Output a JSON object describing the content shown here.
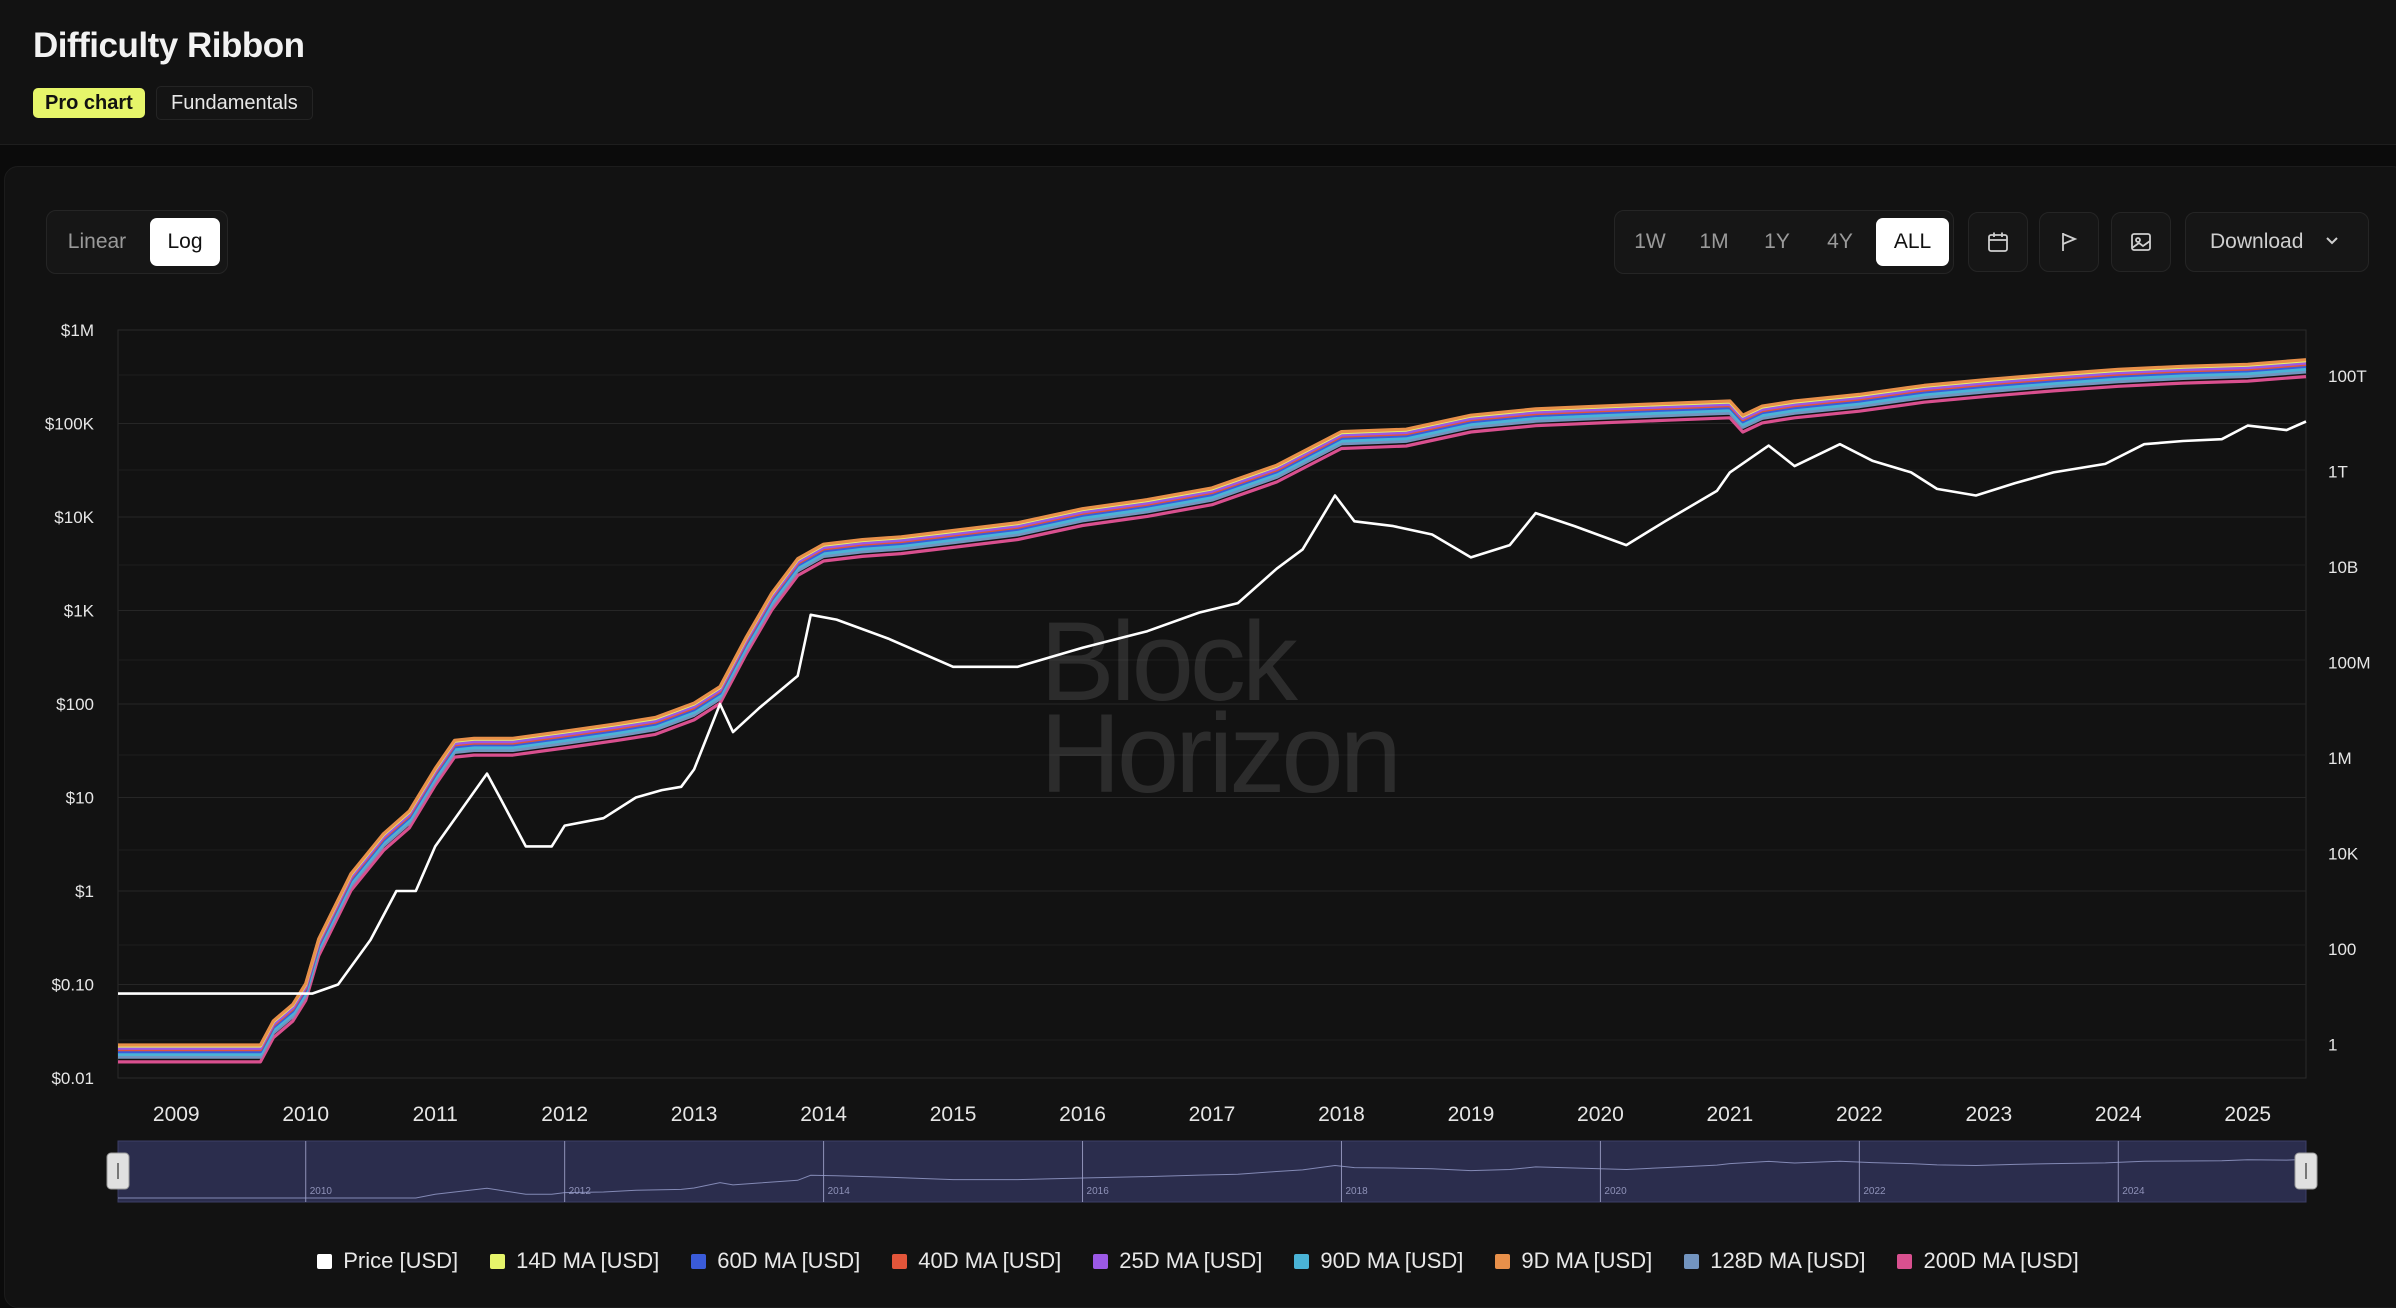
{
  "header": {
    "title": "Difficulty Ribbon",
    "tags": [
      "Pro chart",
      "Fundamentals"
    ]
  },
  "controls": {
    "scale": [
      "Linear",
      "Log"
    ],
    "scale_active": "Log",
    "ranges": [
      "1W",
      "1M",
      "1Y",
      "4Y",
      "ALL"
    ],
    "range_active": "ALL",
    "icons": [
      "calendar-icon",
      "flag-icon",
      "image-download-icon"
    ],
    "download_label": "Download"
  },
  "watermark": [
    "Block",
    "Horizon"
  ],
  "colors": {
    "background": "#121212",
    "price": "#ffffff",
    "accent": "#e6f56a",
    "navigator": "#2b2d4d"
  },
  "chart_data": {
    "type": "line",
    "ylabel_left_ticks": [
      "$1M",
      "$100K",
      "$10K",
      "$1K",
      "$100",
      "$10",
      "$1",
      "$0.10",
      "$0.01"
    ],
    "ylabel_right_ticks": [
      "100T",
      "1T",
      "10B",
      "100M",
      "1M",
      "10K",
      "100",
      "1"
    ],
    "x_ticks": [
      "2009",
      "2010",
      "2011",
      "2012",
      "2013",
      "2014",
      "2015",
      "2016",
      "2017",
      "2018",
      "2019",
      "2020",
      "2021",
      "2022",
      "2023",
      "2024",
      "2025"
    ],
    "navigator_ticks": [
      "2010",
      "2012",
      "2014",
      "2016",
      "2018",
      "2020",
      "2022",
      "2024"
    ],
    "x_range": [
      2008.55,
      2025.45
    ],
    "left_axis": {
      "scale": "log",
      "range": [
        0.01,
        1000000
      ]
    },
    "right_axis": {
      "scale": "log"
    },
    "grid": true,
    "legend_position": "bottom",
    "series": [
      {
        "name": "Price [USD]",
        "color": "#ffffff",
        "x": [
          2008.55,
          2010.05,
          2010.25,
          2010.5,
          2010.7,
          2010.85,
          2011.0,
          2011.4,
          2011.5,
          2011.7,
          2011.9,
          2012.0,
          2012.3,
          2012.55,
          2012.75,
          2012.9,
          2013.0,
          2013.2,
          2013.3,
          2013.5,
          2013.8,
          2013.9,
          2014.1,
          2014.5,
          2015.0,
          2015.5,
          2016.0,
          2016.5,
          2016.9,
          2017.2,
          2017.5,
          2017.7,
          2017.95,
          2018.1,
          2018.4,
          2018.7,
          2019.0,
          2019.3,
          2019.5,
          2019.8,
          2020.2,
          2020.5,
          2020.9,
          2021.0,
          2021.3,
          2021.5,
          2021.85,
          2022.1,
          2022.4,
          2022.6,
          2022.9,
          2023.2,
          2023.5,
          2023.9,
          2024.2,
          2024.5,
          2024.8,
          2025.0,
          2025.3,
          2025.45
        ],
        "y": [
          0.08,
          0.08,
          0.1,
          0.3,
          1,
          1,
          3,
          18,
          10,
          3,
          3,
          5,
          6,
          10,
          12,
          13,
          20,
          100,
          50,
          90,
          200,
          900,
          800,
          500,
          250,
          250,
          400,
          600,
          950,
          1200,
          2800,
          4500,
          17000,
          9000,
          8000,
          6500,
          3700,
          5000,
          11000,
          8000,
          5000,
          9000,
          19000,
          30000,
          58000,
          35000,
          60000,
          40000,
          30000,
          20000,
          17000,
          23000,
          30000,
          37000,
          60000,
          65000,
          68000,
          95000,
          85000,
          105000
        ]
      },
      {
        "name": "14D MA [USD]",
        "color": "#e6f56a",
        "offset": 0.0
      },
      {
        "name": "60D MA [USD]",
        "color": "#3a5bd9",
        "offset": 0.06
      },
      {
        "name": "40D MA [USD]",
        "color": "#e2553a",
        "offset": 0.04
      },
      {
        "name": "25D MA [USD]",
        "color": "#9b59e6",
        "offset": 0.025
      },
      {
        "name": "90D MA [USD]",
        "color": "#4ab3d6",
        "offset": 0.09
      },
      {
        "name": "9D MA [USD]",
        "color": "#e8904a",
        "offset": -0.01
      },
      {
        "name": "128D MA [USD]",
        "color": "#7294bf",
        "offset": 0.12
      },
      {
        "name": "200D MA [USD]",
        "color": "#d9508f",
        "offset": 0.17
      }
    ],
    "ribbon_base": {
      "x": [
        2008.55,
        2009.65,
        2009.75,
        2009.9,
        2010.0,
        2010.1,
        2010.35,
        2010.6,
        2010.8,
        2011.0,
        2011.15,
        2011.3,
        2011.6,
        2012.0,
        2012.4,
        2012.7,
        2013.0,
        2013.2,
        2013.4,
        2013.6,
        2013.8,
        2014.0,
        2014.3,
        2014.6,
        2015.0,
        2015.5,
        2016.0,
        2016.5,
        2017.0,
        2017.5,
        2018.0,
        2018.5,
        2019.0,
        2019.5,
        2020.0,
        2020.5,
        2021.0,
        2021.1,
        2021.25,
        2021.5,
        2022.0,
        2022.5,
        2023.0,
        2023.5,
        2024.0,
        2024.5,
        2025.0,
        2025.45
      ],
      "y": [
        0.022,
        0.022,
        0.04,
        0.06,
        0.1,
        0.3,
        1.5,
        4,
        7,
        20,
        40,
        42,
        42,
        50,
        60,
        70,
        100,
        150,
        500,
        1500,
        3500,
        5000,
        5600,
        6000,
        7000,
        8500,
        12000,
        15000,
        20000,
        35000,
        80000,
        85000,
        120000,
        140000,
        150000,
        160000,
        170000,
        120000,
        150000,
        170000,
        200000,
        250000,
        290000,
        330000,
        370000,
        400000,
        420000,
        470000
      ]
    }
  },
  "legend": [
    "Price [USD]",
    "14D MA [USD]",
    "60D MA [USD]",
    "40D MA [USD]",
    "25D MA [USD]",
    "90D MA [USD]",
    "9D MA [USD]",
    "128D MA [USD]",
    "200D MA [USD]"
  ]
}
